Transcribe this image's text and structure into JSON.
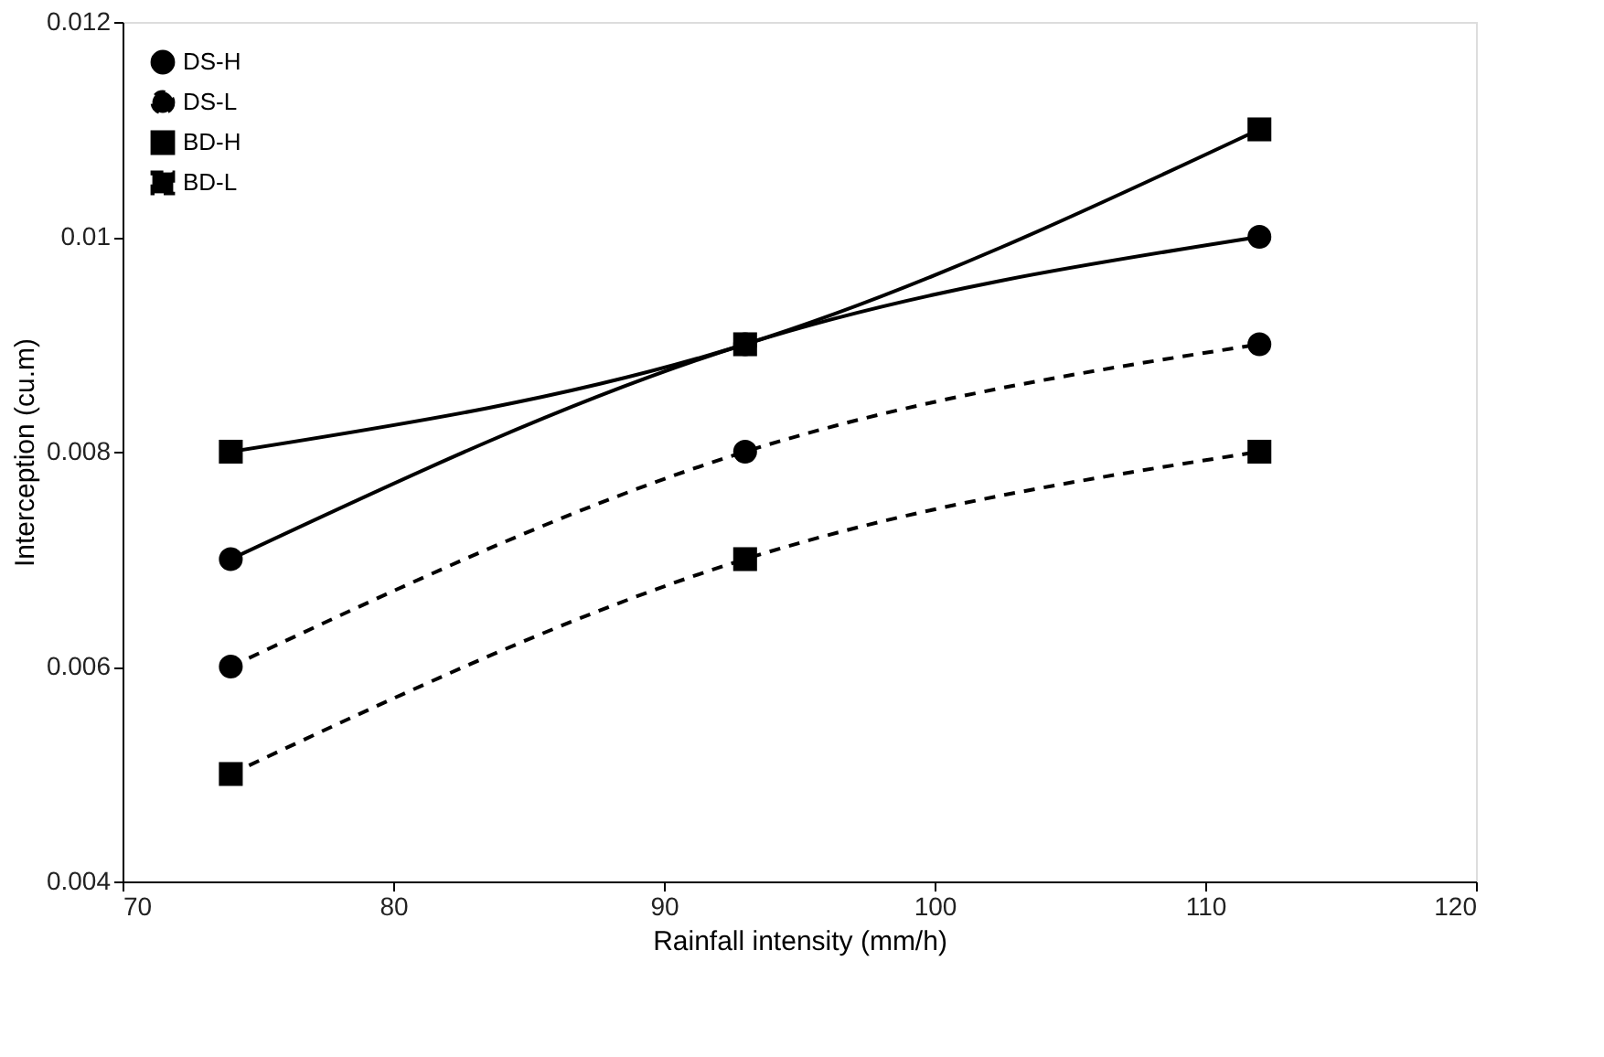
{
  "chart_data": {
    "type": "line",
    "xlabel": "Rainfall intensity (mm/h)",
    "ylabel": "Interception (cu.m)",
    "xlim": [
      70,
      120
    ],
    "xticks": [
      70,
      80,
      90,
      100,
      110,
      120
    ],
    "ylim": [
      0.004,
      0.012
    ],
    "yticks": [
      0.004,
      0.006,
      0.008,
      0.01,
      0.012
    ],
    "grid": false,
    "legend": "top left",
    "series": [
      {
        "name": "DS-H",
        "color": "#000000",
        "marker": "circle",
        "line_style": "solid",
        "x": [
          74,
          93,
          112
        ],
        "values": [
          0.007,
          0.009,
          0.01
        ]
      },
      {
        "name": "DS-L",
        "color": "#000000",
        "marker": "circle",
        "line_style": "dashed",
        "x": [
          74,
          93,
          112
        ],
        "values": [
          0.006,
          0.008,
          0.009
        ]
      },
      {
        "name": "BD-H",
        "color": "#000000",
        "marker": "square",
        "line_style": "solid",
        "x": [
          74,
          93,
          112
        ],
        "values": [
          0.008,
          0.009,
          0.011
        ]
      },
      {
        "name": "BD-L",
        "color": "#000000",
        "marker": "square",
        "line_style": "dashed",
        "x": [
          74,
          93,
          112
        ],
        "values": [
          0.005,
          0.007,
          0.008
        ]
      }
    ]
  }
}
